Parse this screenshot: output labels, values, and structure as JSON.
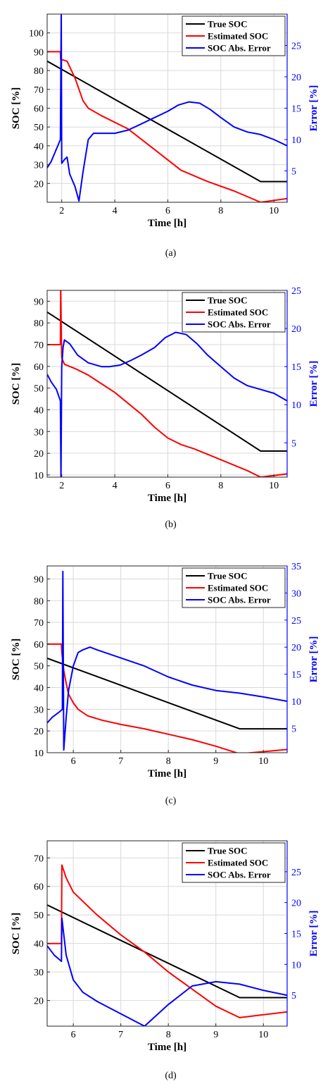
{
  "figure": {
    "captions": [
      "(a)",
      "(b)",
      "(c)",
      "(d)"
    ]
  },
  "colors": {
    "true_soc": "#000000",
    "estimated_soc": "#ff0000",
    "error": "#0000ff"
  },
  "chart_data": [
    {
      "panel": "(a)",
      "type": "line",
      "xlabel": "Time [h]",
      "ylabel": "SOC [%]",
      "y2label": "Error [%]",
      "xlim": [
        1.45,
        10.5
      ],
      "ylim": [
        10,
        110
      ],
      "y2lim": [
        0,
        30
      ],
      "xticks": [
        2,
        4,
        6,
        8,
        10
      ],
      "yticks": [
        20,
        30,
        40,
        50,
        60,
        70,
        80,
        90,
        100
      ],
      "y2ticks": [
        5,
        10,
        15,
        20,
        25
      ],
      "grid": true,
      "legend": "top-right",
      "series": [
        {
          "name": "True SOC",
          "axis": "left",
          "color": "#000000",
          "x": [
            1.45,
            9.5,
            10.5
          ],
          "y": [
            85,
            21,
            21
          ]
        },
        {
          "name": "Estimated SOC",
          "axis": "left",
          "color": "#ff0000",
          "x": [
            1.45,
            1.95,
            1.96,
            2.2,
            2.5,
            2.8,
            3.0,
            3.5,
            4.5,
            5.5,
            6.5,
            7.5,
            8.5,
            9.5,
            10.5
          ],
          "y": [
            90,
            90,
            86,
            85,
            76,
            64,
            60,
            56,
            49,
            38,
            27,
            21,
            16,
            10,
            12
          ]
        },
        {
          "name": "SOC Abs. Error",
          "axis": "right",
          "color": "#0000ff",
          "x": [
            1.45,
            1.6,
            1.8,
            1.95,
            1.98,
            2.0,
            2.05,
            2.1,
            2.2,
            2.3,
            2.5,
            2.65,
            2.8,
            3.0,
            3.2,
            3.5,
            4.0,
            4.5,
            5.0,
            5.5,
            6.0,
            6.4,
            6.8,
            7.2,
            7.6,
            8.0,
            8.5,
            9.0,
            9.5,
            10.0,
            10.5
          ],
          "y": [
            5.5,
            6.5,
            8.5,
            10,
            30,
            6.2,
            6.5,
            6.8,
            7.2,
            4.5,
            2.5,
            0.2,
            4.8,
            10,
            11,
            11,
            11,
            11.5,
            12.5,
            13.5,
            14.5,
            15.5,
            16,
            15.8,
            14.8,
            13.5,
            12,
            11.2,
            10.8,
            10,
            9
          ]
        }
      ]
    },
    {
      "panel": "(b)",
      "type": "line",
      "xlabel": "Time [h]",
      "ylabel": "SOC [%]",
      "y2label": "Error [%]",
      "xlim": [
        1.45,
        10.5
      ],
      "ylim": [
        9,
        95
      ],
      "y2lim": [
        0.5,
        25
      ],
      "xticks": [
        2,
        4,
        6,
        8,
        10
      ],
      "yticks": [
        10,
        20,
        30,
        40,
        50,
        60,
        70,
        80,
        90
      ],
      "y2ticks": [
        5,
        10,
        15,
        20,
        25
      ],
      "grid": true,
      "legend": "top-right",
      "series": [
        {
          "name": "True SOC",
          "axis": "left",
          "color": "#000000",
          "x": [
            1.45,
            9.5,
            10.5
          ],
          "y": [
            85,
            21,
            21
          ]
        },
        {
          "name": "Estimated SOC",
          "axis": "left",
          "color": "#ff0000",
          "x": [
            1.45,
            1.95,
            1.96,
            2.0,
            2.1,
            2.5,
            3.0,
            3.5,
            4.0,
            4.5,
            5.0,
            5.5,
            6.0,
            6.5,
            7.0,
            8.0,
            9.0,
            9.5,
            10.5
          ],
          "y": [
            70,
            70,
            95,
            64,
            61,
            59,
            56,
            52,
            48,
            43,
            38,
            32,
            27,
            24,
            22,
            17,
            12,
            9,
            10.5
          ]
        },
        {
          "name": "SOC Abs. Error",
          "axis": "right",
          "color": "#0000ff",
          "x": [
            1.45,
            1.6,
            1.8,
            1.95,
            1.97,
            2.0,
            2.05,
            2.1,
            2.3,
            2.6,
            3.0,
            3.5,
            3.8,
            4.2,
            4.6,
            5.0,
            5.5,
            5.9,
            6.3,
            6.7,
            7.1,
            7.5,
            8.0,
            8.5,
            9.0,
            9.5,
            10.0,
            10.5
          ],
          "y": [
            14,
            13,
            12,
            10.5,
            0.5,
            15,
            17.5,
            18.5,
            18,
            16.5,
            15.5,
            15,
            15,
            15.2,
            15.8,
            16.5,
            17.5,
            18.8,
            19.5,
            19.2,
            18,
            16.5,
            15,
            13.5,
            12.5,
            12,
            11.5,
            10.5
          ]
        }
      ]
    },
    {
      "panel": "(c)",
      "type": "line",
      "xlabel": "Time [h]",
      "ylabel": "SOC [%]",
      "y2label": "Error [%]",
      "xlim": [
        5.45,
        10.5
      ],
      "ylim": [
        10,
        96
      ],
      "y2lim": [
        0.5,
        35
      ],
      "xticks": [
        6,
        7,
        8,
        9,
        10
      ],
      "yticks": [
        10,
        20,
        30,
        40,
        50,
        60,
        70,
        80,
        90
      ],
      "y2ticks": [
        5,
        10,
        15,
        20,
        25,
        30,
        35
      ],
      "grid": true,
      "legend": "top-right",
      "series": [
        {
          "name": "True SOC",
          "axis": "left",
          "color": "#000000",
          "x": [
            5.45,
            9.5,
            10.5
          ],
          "y": [
            53.5,
            21,
            21
          ]
        },
        {
          "name": "Estimated SOC",
          "axis": "left",
          "color": "#ff0000",
          "x": [
            5.45,
            5.75,
            5.76,
            5.8,
            5.85,
            5.9,
            6.0,
            6.1,
            6.3,
            6.6,
            7.0,
            7.5,
            8.0,
            8.5,
            9.0,
            9.5,
            10.0,
            10.5
          ],
          "y": [
            60,
            60,
            56,
            48,
            42,
            37,
            33,
            30,
            27,
            25,
            23,
            21,
            18.5,
            16,
            13,
            9.5,
            10.5,
            11.5
          ]
        },
        {
          "name": "SOC Abs. Error",
          "axis": "right",
          "color": "#0000ff",
          "x": [
            5.45,
            5.55,
            5.7,
            5.77,
            5.78,
            5.8,
            5.85,
            5.9,
            6.0,
            6.1,
            6.2,
            6.35,
            6.5,
            7.0,
            7.5,
            8.0,
            8.5,
            9.0,
            9.5,
            10.0,
            10.5
          ],
          "y": [
            6,
            7,
            8,
            8.5,
            34,
            1,
            7,
            12,
            16.5,
            19,
            19.5,
            20,
            19.5,
            18,
            16.5,
            14.5,
            13,
            12,
            11.5,
            10.8,
            10
          ]
        }
      ]
    },
    {
      "panel": "(d)",
      "type": "line",
      "xlabel": "Time [h]",
      "ylabel": "SOC [%]",
      "y2label": "Error [%]",
      "xlim": [
        5.45,
        10.5
      ],
      "ylim": [
        11,
        76
      ],
      "y2lim": [
        0,
        30
      ],
      "xticks": [
        6,
        7,
        8,
        9,
        10
      ],
      "yticks": [
        20,
        30,
        40,
        50,
        60,
        70
      ],
      "y2ticks": [
        5,
        10,
        15,
        20,
        25
      ],
      "grid": true,
      "legend": "top-right",
      "series": [
        {
          "name": "True SOC",
          "axis": "left",
          "color": "#000000",
          "x": [
            5.45,
            9.5,
            10.5
          ],
          "y": [
            53.5,
            21,
            21
          ]
        },
        {
          "name": "Estimated SOC",
          "axis": "left",
          "color": "#ff0000",
          "x": [
            5.45,
            5.75,
            5.76,
            5.85,
            6.0,
            6.5,
            7.0,
            7.5,
            8.0,
            8.5,
            9.0,
            9.5,
            10.0,
            10.5
          ],
          "y": [
            40,
            40,
            67.5,
            63,
            58,
            50,
            43,
            37,
            30,
            24,
            18,
            14,
            15,
            16
          ]
        },
        {
          "name": "SOC Abs. Error",
          "axis": "right",
          "color": "#0000ff",
          "x": [
            5.45,
            5.6,
            5.75,
            5.76,
            5.85,
            6.0,
            6.2,
            6.5,
            7.0,
            7.5,
            8.0,
            8.5,
            9.0,
            9.5,
            10.0,
            10.5
          ],
          "y": [
            13,
            11.5,
            10.5,
            17.5,
            11.5,
            7.5,
            5.5,
            4,
            2,
            0,
            3.5,
            6.5,
            7.2,
            6.8,
            5.8,
            5
          ]
        }
      ]
    }
  ]
}
